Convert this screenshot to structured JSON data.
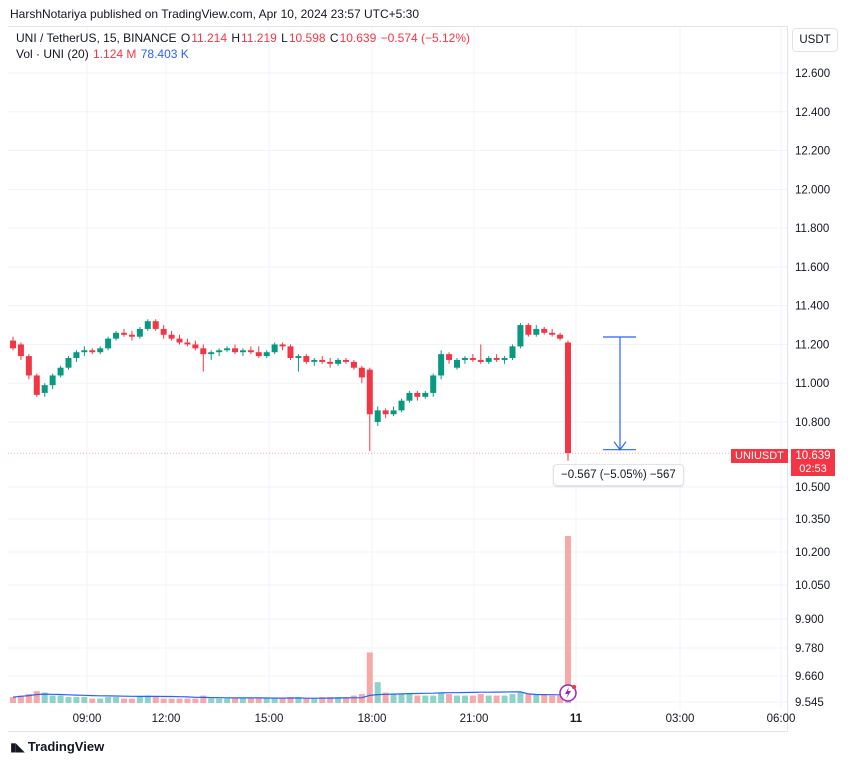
{
  "header": {
    "text": "HarshNotariya published on TradingView.com, Apr 10, 2024 23:57 UTC+5:30"
  },
  "legend": {
    "symbol": "UNI / TetherUS, 15, BINANCE",
    "open_label": "O",
    "open": "11.214",
    "high_label": "H",
    "high": "11.219",
    "low_label": "L",
    "low": "10.598",
    "close_label": "C",
    "close": "10.639",
    "change": "−0.574 (−5.12%)",
    "volume_label": "Vol · UNI (20)",
    "volume": "1.124 M",
    "volume_ma": "78.403 K"
  },
  "currency_button": "USDT",
  "price_tag": {
    "symbol": "UNIUSDT",
    "value": "10.639",
    "countdown": "02:53"
  },
  "measure_label": "−0.567 (−5.05%) −567",
  "colors": {
    "up": "#089981",
    "down": "#f23645",
    "vol_ma": "#2962ff",
    "measure": "#2962ff"
  },
  "footer": {
    "logo_text": "TradingView"
  },
  "chart_data": {
    "type": "candlestick",
    "interval": "15",
    "price_axis_ticks_upper": [
      "12.600",
      "12.400",
      "12.200",
      "12.000",
      "11.800",
      "11.600",
      "11.400",
      "11.200",
      "11.000",
      "10.800"
    ],
    "price_axis_ticks_lower": [
      "10.500",
      "10.350",
      "10.200",
      "10.050",
      "9.900",
      "9.780",
      "9.660",
      "9.545"
    ],
    "time_ticks": [
      "09:00",
      "12:00",
      "15:00",
      "18:00",
      "21:00",
      "11",
      "03:00",
      "06:00"
    ],
    "ylim": [
      10.45,
      12.7
    ],
    "candles": [
      [
        11.22,
        11.24,
        11.17,
        11.18
      ],
      [
        11.2,
        11.21,
        11.12,
        11.14
      ],
      [
        11.14,
        11.15,
        11.02,
        11.04
      ],
      [
        11.04,
        11.05,
        10.93,
        10.94
      ],
      [
        10.95,
        11.0,
        10.93,
        10.99
      ],
      [
        10.99,
        11.05,
        10.97,
        11.04
      ],
      [
        11.04,
        11.09,
        11.03,
        11.08
      ],
      [
        11.08,
        11.14,
        11.07,
        11.13
      ],
      [
        11.13,
        11.17,
        11.11,
        11.16
      ],
      [
        11.16,
        11.19,
        11.14,
        11.17
      ],
      [
        11.17,
        11.18,
        11.15,
        11.16
      ],
      [
        11.16,
        11.19,
        11.15,
        11.18
      ],
      [
        11.18,
        11.24,
        11.17,
        11.23
      ],
      [
        11.23,
        11.27,
        11.22,
        11.26
      ],
      [
        11.26,
        11.28,
        11.24,
        11.25
      ],
      [
        11.25,
        11.27,
        11.22,
        11.24
      ],
      [
        11.24,
        11.29,
        11.23,
        11.28
      ],
      [
        11.28,
        11.33,
        11.27,
        11.32
      ],
      [
        11.32,
        11.33,
        11.27,
        11.28
      ],
      [
        11.28,
        11.3,
        11.23,
        11.25
      ],
      [
        11.25,
        11.27,
        11.22,
        11.23
      ],
      [
        11.23,
        11.25,
        11.2,
        11.21
      ],
      [
        11.21,
        11.23,
        11.19,
        11.2
      ],
      [
        11.2,
        11.22,
        11.17,
        11.18
      ],
      [
        11.18,
        11.2,
        11.06,
        11.15
      ],
      [
        11.15,
        11.17,
        11.12,
        11.16
      ],
      [
        11.16,
        11.18,
        11.14,
        11.17
      ],
      [
        11.17,
        11.19,
        11.16,
        11.18
      ],
      [
        11.18,
        11.2,
        11.15,
        11.16
      ],
      [
        11.16,
        11.18,
        11.14,
        11.17
      ],
      [
        11.17,
        11.19,
        11.15,
        11.16
      ],
      [
        11.16,
        11.19,
        11.13,
        11.14
      ],
      [
        11.14,
        11.17,
        11.13,
        11.16
      ],
      [
        11.16,
        11.21,
        11.15,
        11.2
      ],
      [
        11.2,
        11.21,
        11.17,
        11.19
      ],
      [
        11.19,
        11.2,
        11.12,
        11.13
      ],
      [
        11.13,
        11.15,
        11.06,
        11.14
      ],
      [
        11.14,
        11.15,
        11.1,
        11.11
      ],
      [
        11.11,
        11.13,
        11.09,
        11.12
      ],
      [
        11.12,
        11.14,
        11.1,
        11.11
      ],
      [
        11.11,
        11.13,
        11.08,
        11.1
      ],
      [
        11.1,
        11.13,
        11.09,
        11.12
      ],
      [
        11.12,
        11.13,
        11.1,
        11.11
      ],
      [
        11.11,
        11.12,
        11.07,
        11.08
      ],
      [
        11.08,
        11.09,
        11.0,
        11.03
      ],
      [
        11.07,
        11.08,
        10.65,
        10.84
      ],
      [
        10.8,
        10.88,
        10.78,
        10.86
      ],
      [
        10.86,
        10.87,
        10.82,
        10.84
      ],
      [
        10.84,
        10.88,
        10.83,
        10.86
      ],
      [
        10.86,
        10.92,
        10.85,
        10.91
      ],
      [
        10.91,
        10.96,
        10.9,
        10.95
      ],
      [
        10.95,
        10.96,
        10.91,
        10.93
      ],
      [
        10.93,
        10.96,
        10.92,
        10.95
      ],
      [
        10.95,
        11.05,
        10.93,
        11.04
      ],
      [
        11.04,
        11.17,
        11.02,
        11.15
      ],
      [
        11.15,
        11.16,
        11.1,
        11.12
      ],
      [
        11.08,
        11.13,
        11.07,
        11.12
      ],
      [
        11.12,
        11.14,
        11.1,
        11.13
      ],
      [
        11.13,
        11.15,
        11.11,
        11.12
      ],
      [
        11.12,
        11.2,
        11.1,
        11.11
      ],
      [
        11.11,
        11.14,
        11.1,
        11.13
      ],
      [
        11.13,
        11.15,
        11.11,
        11.12
      ],
      [
        11.12,
        11.14,
        11.1,
        11.13
      ],
      [
        11.13,
        11.2,
        11.12,
        11.19
      ],
      [
        11.19,
        11.31,
        11.18,
        11.3
      ],
      [
        11.3,
        11.31,
        11.24,
        11.25
      ],
      [
        11.25,
        11.3,
        11.24,
        11.28
      ],
      [
        11.28,
        11.29,
        11.25,
        11.26
      ],
      [
        11.26,
        11.28,
        11.24,
        11.25
      ],
      [
        11.25,
        11.26,
        11.22,
        11.23
      ],
      [
        11.21,
        11.22,
        10.6,
        10.64
      ]
    ],
    "volumes": [
      0.04,
      0.05,
      0.06,
      0.08,
      0.07,
      0.05,
      0.05,
      0.04,
      0.04,
      0.04,
      0.03,
      0.03,
      0.04,
      0.04,
      0.03,
      0.03,
      0.04,
      0.05,
      0.04,
      0.03,
      0.03,
      0.03,
      0.03,
      0.03,
      0.05,
      0.03,
      0.03,
      0.03,
      0.03,
      0.03,
      0.03,
      0.03,
      0.03,
      0.03,
      0.03,
      0.04,
      0.04,
      0.03,
      0.03,
      0.04,
      0.04,
      0.04,
      0.04,
      0.05,
      0.06,
      0.34,
      0.14,
      0.07,
      0.06,
      0.06,
      0.06,
      0.05,
      0.05,
      0.05,
      0.07,
      0.06,
      0.05,
      0.05,
      0.05,
      0.06,
      0.05,
      0.05,
      0.05,
      0.06,
      0.07,
      0.06,
      0.06,
      0.06,
      0.05,
      0.05,
      1.124
    ],
    "measure": {
      "from": 11.219,
      "to": 10.652,
      "change": "−0.567 (−5.05%) −567"
    }
  }
}
